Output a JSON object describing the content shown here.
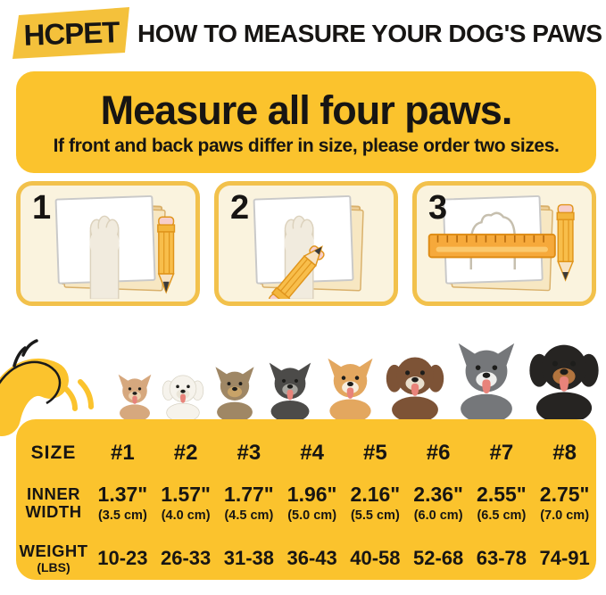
{
  "header": {
    "logo_text": "HCPET",
    "title": "HOW TO MEASURE YOUR DOG'S PAWS"
  },
  "banner": {
    "title": "Measure all four paws.",
    "subtitle": "If front and back paws differ in size, please order two sizes."
  },
  "steps": [
    {
      "number": "1",
      "illustration": "paw-on-paper-with-pencil"
    },
    {
      "number": "2",
      "illustration": "tracing-paw-outline-with-pencil"
    },
    {
      "number": "3",
      "illustration": "measuring-paw-outline-with-ruler"
    }
  ],
  "dogs": [
    {
      "breed": "chihuahua",
      "color_main": "#D6A87E",
      "color_accent": "#EED3B0",
      "outline": "none",
      "ears": "up",
      "tongue": true,
      "size": 46
    },
    {
      "breed": "bichon-frise",
      "color_main": "#F6F3EC",
      "color_accent": "#EAE5D8",
      "outline": "#D9D4C6",
      "ears": "down",
      "tongue": true,
      "size": 50
    },
    {
      "breed": "yorkshire-terrier",
      "color_main": "#9F8765",
      "color_accent": "#C8A368",
      "outline": "none",
      "ears": "up",
      "tongue": false,
      "size": 54
    },
    {
      "breed": "miniature-schnauzer",
      "color_main": "#4C4B49",
      "color_accent": "#A7A6A0",
      "outline": "none",
      "ears": "up",
      "tongue": true,
      "size": 58
    },
    {
      "breed": "shiba-inu",
      "color_main": "#E3A75F",
      "color_accent": "#F7EDDE",
      "outline": "none",
      "ears": "up",
      "tongue": true,
      "size": 63
    },
    {
      "breed": "australian-shepherd",
      "color_main": "#7D5336",
      "color_accent": "#E9DECC",
      "outline": "none",
      "ears": "down",
      "tongue": true,
      "size": 70
    },
    {
      "breed": "siberian-husky",
      "color_main": "#75777A",
      "color_accent": "#EFEFED",
      "outline": "none",
      "ears": "up",
      "tongue": true,
      "size": 78
    },
    {
      "breed": "rottweiler",
      "color_main": "#262422",
      "color_accent": "#B2743E",
      "outline": "none",
      "ears": "down",
      "tongue": true,
      "size": 84
    }
  ],
  "size_chart": {
    "size_row": {
      "label": "SIZE",
      "values": [
        "#1",
        "#2",
        "#3",
        "#4",
        "#5",
        "#6",
        "#7",
        "#8"
      ]
    },
    "inner_width_row": {
      "label_lines": [
        "INNER",
        "WIDTH"
      ],
      "inches": [
        "1.37\"",
        "1.57\"",
        "1.77\"",
        "1.96\"",
        "2.16\"",
        "2.36\"",
        "2.55\"",
        "2.75\""
      ],
      "centimeters": [
        "(3.5 cm)",
        "(4.0 cm)",
        "(4.5 cm)",
        "(5.0 cm)",
        "(5.5 cm)",
        "(6.0 cm)",
        "(6.5 cm)",
        "(7.0 cm)"
      ]
    },
    "weight_row": {
      "label_lines": [
        "WEIGHT",
        "(LBS)"
      ],
      "values": [
        "10-23",
        "26-33",
        "31-38",
        "36-43",
        "40-58",
        "52-68",
        "63-78",
        "74-91"
      ]
    }
  },
  "colors": {
    "primary_yellow": "#FBC32D",
    "logo_yellow": "#F4C13B",
    "step_box_fill": "#FAF3DE",
    "step_box_border": "#F2C14B",
    "pencil_body": "#F8BE4B",
    "ruler_orange": "#F6A93B",
    "text_black": "#171513"
  }
}
